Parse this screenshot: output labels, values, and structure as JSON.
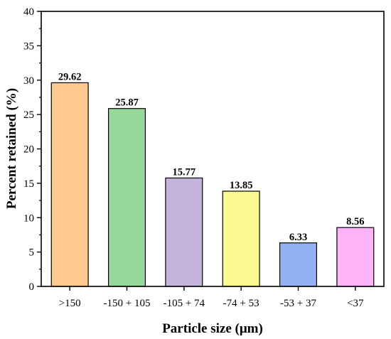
{
  "chart_data": {
    "type": "bar",
    "title": "",
    "xlabel": "Particle size (μm)",
    "ylabel": "Percent retained (%)",
    "ylim": [
      0,
      40
    ],
    "yticks": [
      0,
      5,
      10,
      15,
      20,
      25,
      30,
      35,
      40
    ],
    "categories": [
      ">150",
      "-150 + 105",
      "-105 + 74",
      "-74 + 53",
      "-53 + 37",
      "<37"
    ],
    "values": [
      29.62,
      25.87,
      15.77,
      13.85,
      6.33,
      8.56
    ],
    "data_labels": [
      "29.62",
      "25.87",
      "15.77",
      "13.85",
      "6.33",
      "8.56"
    ],
    "colors": [
      "#FFC98F",
      "#96D79A",
      "#C4B3DA",
      "#FAFA90",
      "#93B2F5",
      "#FFB3F8"
    ],
    "grid": false,
    "legend": "none"
  }
}
